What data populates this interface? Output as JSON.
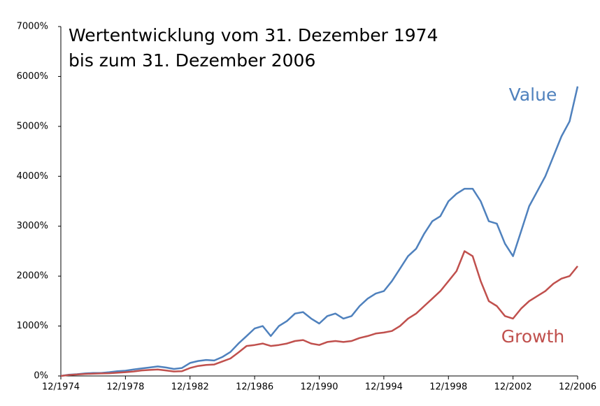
{
  "chart_data": {
    "type": "line",
    "title": [
      "Wertentwicklung vom 31. Dezember 1974",
      "bis zum 31. Dezember 2006"
    ],
    "x": [
      1974.917,
      1975.417,
      1975.917,
      1976.417,
      1976.917,
      1977.417,
      1977.917,
      1978.417,
      1978.917,
      1979.417,
      1979.917,
      1980.417,
      1980.917,
      1981.417,
      1981.917,
      1982.417,
      1982.917,
      1983.417,
      1983.917,
      1984.417,
      1984.917,
      1985.417,
      1985.917,
      1986.417,
      1986.917,
      1987.417,
      1987.917,
      1988.417,
      1988.917,
      1989.417,
      1989.917,
      1990.417,
      1990.917,
      1991.417,
      1991.917,
      1992.417,
      1992.917,
      1993.417,
      1993.917,
      1994.417,
      1994.917,
      1995.417,
      1995.917,
      1996.417,
      1996.917,
      1997.417,
      1997.917,
      1998.417,
      1998.917,
      1999.417,
      1999.917,
      2000.417,
      2000.917,
      2001.417,
      2001.917,
      2002.417,
      2002.917,
      2003.417,
      2003.917,
      2004.417,
      2004.917,
      2005.417,
      2005.917,
      2006.417,
      2006.917
    ],
    "series": [
      {
        "name": "Value",
        "color": "#4f81bd",
        "values": [
          0,
          25,
          35,
          50,
          60,
          60,
          75,
          95,
          105,
          130,
          150,
          170,
          190,
          170,
          140,
          160,
          260,
          300,
          320,
          310,
          380,
          480,
          650,
          800,
          950,
          1000,
          800,
          1000,
          1100,
          1250,
          1280,
          1150,
          1050,
          1200,
          1250,
          1150,
          1200,
          1400,
          1550,
          1650,
          1700,
          1900,
          2150,
          2400,
          2550,
          2850,
          3100,
          3200,
          3500,
          3650,
          3750,
          3750,
          3500,
          3100,
          3050,
          2650,
          2400,
          2900,
          3400,
          3700,
          4000,
          4400,
          4800,
          5100,
          5800
        ]
      },
      {
        "name": "Growth",
        "color": "#c0504d",
        "values": [
          0,
          20,
          30,
          40,
          45,
          50,
          55,
          65,
          75,
          90,
          110,
          120,
          130,
          110,
          90,
          95,
          160,
          200,
          220,
          230,
          290,
          350,
          470,
          600,
          620,
          650,
          600,
          620,
          650,
          700,
          720,
          650,
          620,
          680,
          700,
          680,
          700,
          760,
          800,
          850,
          870,
          900,
          1000,
          1150,
          1250,
          1400,
          1550,
          1700,
          1900,
          2100,
          2500,
          2400,
          1900,
          1500,
          1400,
          1200,
          1150,
          1350,
          1500,
          1600,
          1700,
          1850,
          1950,
          2000,
          2200
        ]
      }
    ],
    "xlim": [
      1974.917,
      2006.917
    ],
    "xticks": [
      {
        "value": 1974.917,
        "label": "12/1974"
      },
      {
        "value": 1978.917,
        "label": "12/1978"
      },
      {
        "value": 1982.917,
        "label": "12/1982"
      },
      {
        "value": 1986.917,
        "label": "12/1986"
      },
      {
        "value": 1990.917,
        "label": "12/1990"
      },
      {
        "value": 1994.917,
        "label": "12/1994"
      },
      {
        "value": 1998.917,
        "label": "12/1998"
      },
      {
        "value": 2002.917,
        "label": "12/2002"
      },
      {
        "value": 2006.917,
        "label": "12/2006"
      }
    ],
    "ylim": [
      0,
      7000
    ],
    "yticks": [
      {
        "value": 0,
        "label": "0%"
      },
      {
        "value": 1000,
        "label": "1000%"
      },
      {
        "value": 2000,
        "label": "2000%"
      },
      {
        "value": 3000,
        "label": "3000%"
      },
      {
        "value": 4000,
        "label": "4000%"
      },
      {
        "value": 5000,
        "label": "5000%"
      },
      {
        "value": 6000,
        "label": "6000%"
      },
      {
        "value": 7000,
        "label": "7000%"
      }
    ],
    "grid": false
  }
}
